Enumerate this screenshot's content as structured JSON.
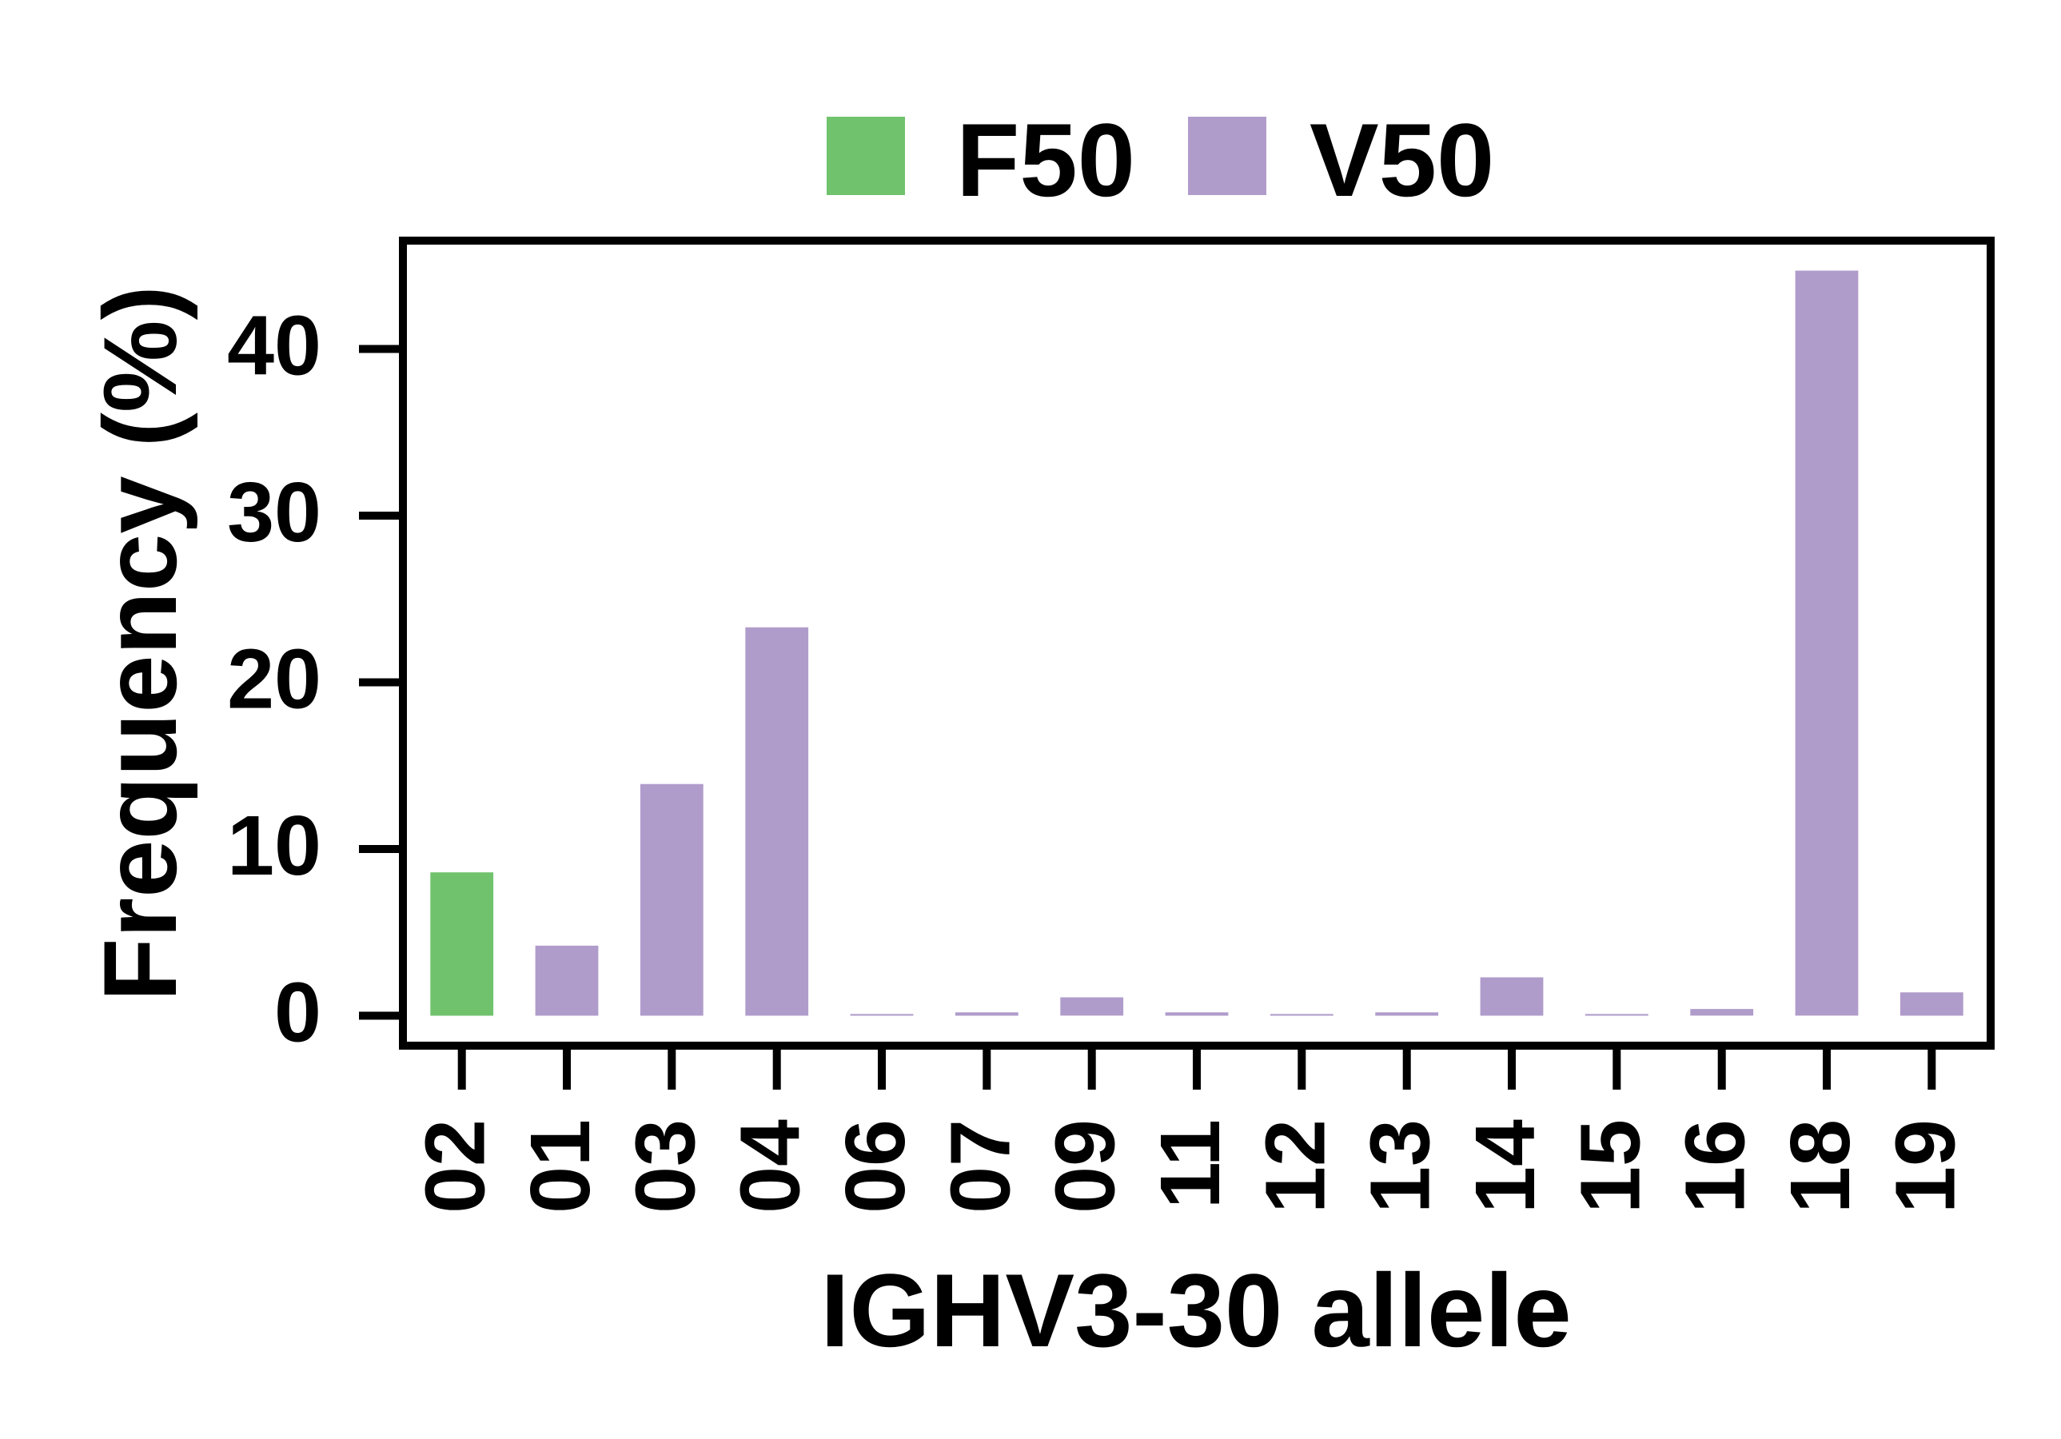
{
  "chart_data": {
    "type": "bar",
    "title": "",
    "xlabel": "IGHV3-30 allele",
    "ylabel": "Frequency (%)",
    "categories": [
      "02",
      "01",
      "03",
      "04",
      "06",
      "07",
      "09",
      "11",
      "12",
      "13",
      "14",
      "15",
      "16",
      "18",
      "19"
    ],
    "values": [
      8.6,
      4.2,
      13.9,
      23.3,
      0.1,
      0.2,
      1.1,
      0.2,
      0.1,
      0.2,
      2.3,
      0.1,
      0.4,
      44.7,
      1.4
    ],
    "groups": [
      "F50",
      "V50",
      "V50",
      "V50",
      "V50",
      "V50",
      "V50",
      "V50",
      "V50",
      "V50",
      "V50",
      "V50",
      "V50",
      "V50",
      "V50"
    ],
    "series": [
      {
        "name": "F50",
        "color": "#70c36c"
      },
      {
        "name": "V50",
        "color": "#b09ccb"
      }
    ],
    "yticks": [
      0,
      10,
      20,
      30,
      40
    ],
    "ytick_labels": [
      "0",
      "10",
      "20",
      "30",
      "40"
    ],
    "ylim": [
      -1.8,
      46.5
    ],
    "grid": false,
    "legend_position": "top-center"
  }
}
